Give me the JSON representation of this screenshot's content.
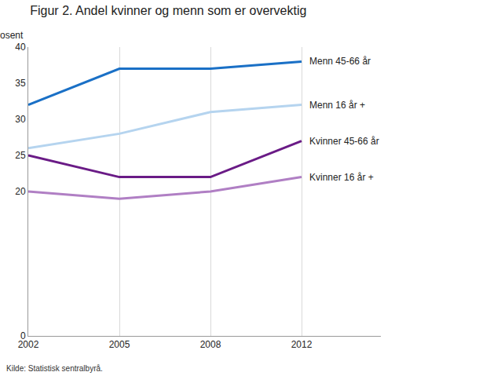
{
  "chart_data": {
    "type": "line",
    "title": "Figur 2. Andel kvinner og menn som er overvektig",
    "ylabel": "Prosent",
    "note": "Kilde: Statistisk sentralbyrå.",
    "categories": [
      "2002",
      "2005",
      "2008",
      "2012"
    ],
    "series": [
      {
        "name": "Menn 45-66 år",
        "color": "#1a70c6",
        "values": [
          32,
          37,
          37,
          38
        ]
      },
      {
        "name": "Menn 16 år +",
        "color": "#b5d4ef",
        "values": [
          26,
          28,
          31,
          32
        ]
      },
      {
        "name": "Kvinner 45-66 år",
        "color": "#6a1b86",
        "values": [
          25,
          22,
          22,
          27
        ]
      },
      {
        "name": "Kvinner 16 år +",
        "color": "#b07fc4",
        "values": [
          20,
          19,
          20,
          22
        ]
      }
    ],
    "ylim": [
      0,
      40
    ],
    "yticks": [
      0,
      20,
      25,
      30,
      35,
      40
    ],
    "grid": true
  }
}
